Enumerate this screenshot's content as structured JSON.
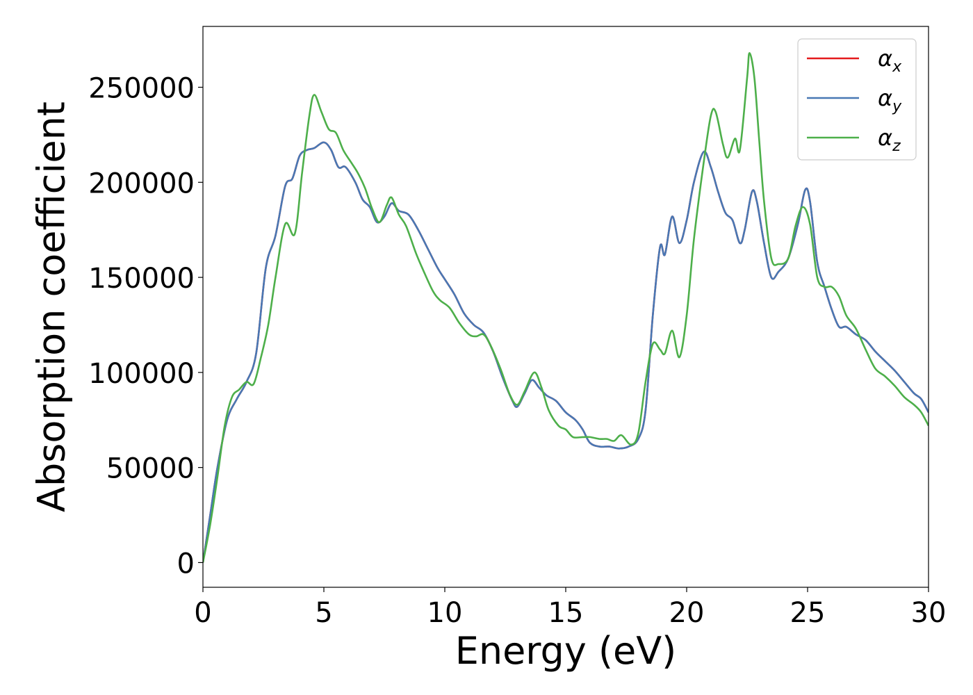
{
  "chart_data": {
    "type": "line",
    "title": "",
    "xlabel": "Energy (eV)",
    "ylabel": "Absorption coefficient",
    "xlim": [
      0,
      30
    ],
    "ylim": [
      -13000,
      282000
    ],
    "xticks": [
      0,
      5,
      10,
      15,
      20,
      25,
      30
    ],
    "yticks": [
      0,
      50000,
      100000,
      150000,
      200000,
      250000
    ],
    "grid": false,
    "legend_position": "top-right",
    "series": [
      {
        "name": "α",
        "subscript": "x",
        "color": "#e41a1c",
        "points": [
          [
            0,
            0
          ],
          [
            0.3,
            25000
          ],
          [
            0.6,
            50000
          ],
          [
            1.0,
            75000
          ],
          [
            1.4,
            86000
          ],
          [
            1.8,
            95000
          ],
          [
            2.2,
            110000
          ],
          [
            2.6,
            155000
          ],
          [
            3.0,
            172000
          ],
          [
            3.4,
            198000
          ],
          [
            3.7,
            202000
          ],
          [
            4.0,
            214000
          ],
          [
            4.3,
            217000
          ],
          [
            4.6,
            218000
          ],
          [
            5.0,
            221000
          ],
          [
            5.3,
            217000
          ],
          [
            5.6,
            208000
          ],
          [
            5.9,
            208000
          ],
          [
            6.3,
            200000
          ],
          [
            6.6,
            191000
          ],
          [
            6.9,
            187000
          ],
          [
            7.2,
            179000
          ],
          [
            7.5,
            182000
          ],
          [
            7.8,
            189000
          ],
          [
            8.1,
            185000
          ],
          [
            8.5,
            183000
          ],
          [
            8.9,
            175000
          ],
          [
            9.3,
            165000
          ],
          [
            9.7,
            155000
          ],
          [
            10.0,
            149000
          ],
          [
            10.4,
            141000
          ],
          [
            10.8,
            131000
          ],
          [
            11.2,
            125000
          ],
          [
            11.6,
            121000
          ],
          [
            12.0,
            111000
          ],
          [
            12.4,
            97000
          ],
          [
            12.8,
            85000
          ],
          [
            13.0,
            82000
          ],
          [
            13.3,
            89000
          ],
          [
            13.6,
            96000
          ],
          [
            13.9,
            92000
          ],
          [
            14.2,
            88000
          ],
          [
            14.6,
            85000
          ],
          [
            15.0,
            79000
          ],
          [
            15.4,
            75000
          ],
          [
            15.7,
            70000
          ],
          [
            16.0,
            63000
          ],
          [
            16.4,
            61000
          ],
          [
            16.8,
            61000
          ],
          [
            17.2,
            60000
          ],
          [
            17.6,
            61000
          ],
          [
            18.0,
            65000
          ],
          [
            18.3,
            80000
          ],
          [
            18.6,
            130000
          ],
          [
            18.9,
            166000
          ],
          [
            19.1,
            162000
          ],
          [
            19.4,
            182000
          ],
          [
            19.7,
            168000
          ],
          [
            20.0,
            180000
          ],
          [
            20.3,
            200000
          ],
          [
            20.7,
            216000
          ],
          [
            21.0,
            208000
          ],
          [
            21.3,
            195000
          ],
          [
            21.6,
            184000
          ],
          [
            21.9,
            180000
          ],
          [
            22.2,
            168000
          ],
          [
            22.4,
            175000
          ],
          [
            22.7,
            195000
          ],
          [
            22.9,
            190000
          ],
          [
            23.2,
            168000
          ],
          [
            23.5,
            150000
          ],
          [
            23.8,
            153000
          ],
          [
            24.2,
            160000
          ],
          [
            24.6,
            178000
          ],
          [
            24.9,
            196000
          ],
          [
            25.1,
            190000
          ],
          [
            25.4,
            158000
          ],
          [
            25.7,
            145000
          ],
          [
            26.0,
            133000
          ],
          [
            26.3,
            124000
          ],
          [
            26.6,
            124000
          ],
          [
            27.0,
            120000
          ],
          [
            27.4,
            117000
          ],
          [
            27.8,
            111000
          ],
          [
            28.2,
            106000
          ],
          [
            28.6,
            101000
          ],
          [
            29.0,
            95000
          ],
          [
            29.4,
            89000
          ],
          [
            29.7,
            86000
          ],
          [
            30.0,
            79000
          ]
        ]
      },
      {
        "name": "α",
        "subscript": "y",
        "color": "#4878b4",
        "points": [
          [
            0,
            0
          ],
          [
            0.3,
            25000
          ],
          [
            0.6,
            50000
          ],
          [
            1.0,
            75000
          ],
          [
            1.4,
            86000
          ],
          [
            1.8,
            95000
          ],
          [
            2.2,
            110000
          ],
          [
            2.6,
            155000
          ],
          [
            3.0,
            172000
          ],
          [
            3.4,
            198000
          ],
          [
            3.7,
            202000
          ],
          [
            4.0,
            214000
          ],
          [
            4.3,
            217000
          ],
          [
            4.6,
            218000
          ],
          [
            5.0,
            221000
          ],
          [
            5.3,
            217000
          ],
          [
            5.6,
            208000
          ],
          [
            5.9,
            208000
          ],
          [
            6.3,
            200000
          ],
          [
            6.6,
            191000
          ],
          [
            6.9,
            187000
          ],
          [
            7.2,
            179000
          ],
          [
            7.5,
            182000
          ],
          [
            7.8,
            189000
          ],
          [
            8.1,
            185000
          ],
          [
            8.5,
            183000
          ],
          [
            8.9,
            175000
          ],
          [
            9.3,
            165000
          ],
          [
            9.7,
            155000
          ],
          [
            10.0,
            149000
          ],
          [
            10.4,
            141000
          ],
          [
            10.8,
            131000
          ],
          [
            11.2,
            125000
          ],
          [
            11.6,
            121000
          ],
          [
            12.0,
            111000
          ],
          [
            12.4,
            97000
          ],
          [
            12.8,
            85000
          ],
          [
            13.0,
            82000
          ],
          [
            13.3,
            89000
          ],
          [
            13.6,
            96000
          ],
          [
            13.9,
            92000
          ],
          [
            14.2,
            88000
          ],
          [
            14.6,
            85000
          ],
          [
            15.0,
            79000
          ],
          [
            15.4,
            75000
          ],
          [
            15.7,
            70000
          ],
          [
            16.0,
            63000
          ],
          [
            16.4,
            61000
          ],
          [
            16.8,
            61000
          ],
          [
            17.2,
            60000
          ],
          [
            17.6,
            61000
          ],
          [
            18.0,
            65000
          ],
          [
            18.3,
            80000
          ],
          [
            18.6,
            130000
          ],
          [
            18.9,
            166000
          ],
          [
            19.1,
            162000
          ],
          [
            19.4,
            182000
          ],
          [
            19.7,
            168000
          ],
          [
            20.0,
            180000
          ],
          [
            20.3,
            200000
          ],
          [
            20.7,
            216000
          ],
          [
            21.0,
            208000
          ],
          [
            21.3,
            195000
          ],
          [
            21.6,
            184000
          ],
          [
            21.9,
            180000
          ],
          [
            22.2,
            168000
          ],
          [
            22.4,
            175000
          ],
          [
            22.7,
            195000
          ],
          [
            22.9,
            190000
          ],
          [
            23.2,
            168000
          ],
          [
            23.5,
            150000
          ],
          [
            23.8,
            153000
          ],
          [
            24.2,
            160000
          ],
          [
            24.6,
            178000
          ],
          [
            24.9,
            196000
          ],
          [
            25.1,
            190000
          ],
          [
            25.4,
            158000
          ],
          [
            25.7,
            145000
          ],
          [
            26.0,
            133000
          ],
          [
            26.3,
            124000
          ],
          [
            26.6,
            124000
          ],
          [
            27.0,
            120000
          ],
          [
            27.4,
            117000
          ],
          [
            27.8,
            111000
          ],
          [
            28.2,
            106000
          ],
          [
            28.6,
            101000
          ],
          [
            29.0,
            95000
          ],
          [
            29.4,
            89000
          ],
          [
            29.7,
            86000
          ],
          [
            30.0,
            79000
          ]
        ]
      },
      {
        "name": "α",
        "subscript": "z",
        "color": "#4daf4a",
        "points": [
          [
            0,
            0
          ],
          [
            0.3,
            20000
          ],
          [
            0.6,
            45000
          ],
          [
            0.9,
            72000
          ],
          [
            1.2,
            87000
          ],
          [
            1.5,
            91000
          ],
          [
            1.8,
            95000
          ],
          [
            2.1,
            94000
          ],
          [
            2.4,
            108000
          ],
          [
            2.7,
            125000
          ],
          [
            3.0,
            150000
          ],
          [
            3.4,
            178000
          ],
          [
            3.8,
            173000
          ],
          [
            4.1,
            205000
          ],
          [
            4.4,
            235000
          ],
          [
            4.6,
            246000
          ],
          [
            4.9,
            237000
          ],
          [
            5.2,
            228000
          ],
          [
            5.5,
            226000
          ],
          [
            5.8,
            217000
          ],
          [
            6.1,
            211000
          ],
          [
            6.4,
            205000
          ],
          [
            6.7,
            197000
          ],
          [
            7.0,
            186000
          ],
          [
            7.3,
            179000
          ],
          [
            7.6,
            188000
          ],
          [
            7.8,
            192000
          ],
          [
            8.1,
            183000
          ],
          [
            8.4,
            177000
          ],
          [
            8.8,
            163000
          ],
          [
            9.1,
            154000
          ],
          [
            9.5,
            143000
          ],
          [
            9.8,
            138000
          ],
          [
            10.2,
            134000
          ],
          [
            10.6,
            126000
          ],
          [
            11.0,
            120000
          ],
          [
            11.3,
            119000
          ],
          [
            11.6,
            120000
          ],
          [
            11.9,
            114000
          ],
          [
            12.3,
            102000
          ],
          [
            12.7,
            88000
          ],
          [
            13.0,
            83000
          ],
          [
            13.3,
            90000
          ],
          [
            13.7,
            100000
          ],
          [
            14.0,
            92000
          ],
          [
            14.3,
            80000
          ],
          [
            14.7,
            72000
          ],
          [
            15.0,
            70000
          ],
          [
            15.3,
            66000
          ],
          [
            15.7,
            66000
          ],
          [
            16.0,
            66000
          ],
          [
            16.4,
            65000
          ],
          [
            16.7,
            65000
          ],
          [
            17.0,
            64000
          ],
          [
            17.3,
            67000
          ],
          [
            17.7,
            62000
          ],
          [
            18.0,
            68000
          ],
          [
            18.3,
            95000
          ],
          [
            18.6,
            115000
          ],
          [
            18.9,
            112000
          ],
          [
            19.1,
            110000
          ],
          [
            19.4,
            122000
          ],
          [
            19.7,
            108000
          ],
          [
            20.0,
            130000
          ],
          [
            20.3,
            170000
          ],
          [
            20.7,
            210000
          ],
          [
            21.0,
            235000
          ],
          [
            21.2,
            237000
          ],
          [
            21.5,
            220000
          ],
          [
            21.7,
            213000
          ],
          [
            22.0,
            223000
          ],
          [
            22.2,
            217000
          ],
          [
            22.5,
            255000
          ],
          [
            22.6,
            268000
          ],
          [
            22.8,
            255000
          ],
          [
            23.0,
            222000
          ],
          [
            23.2,
            190000
          ],
          [
            23.5,
            160000
          ],
          [
            23.8,
            157000
          ],
          [
            24.2,
            160000
          ],
          [
            24.5,
            177000
          ],
          [
            24.8,
            187000
          ],
          [
            25.1,
            178000
          ],
          [
            25.4,
            150000
          ],
          [
            25.7,
            145000
          ],
          [
            26.0,
            145000
          ],
          [
            26.3,
            140000
          ],
          [
            26.6,
            130000
          ],
          [
            27.0,
            123000
          ],
          [
            27.4,
            112000
          ],
          [
            27.8,
            102000
          ],
          [
            28.2,
            98000
          ],
          [
            28.6,
            93000
          ],
          [
            29.0,
            87000
          ],
          [
            29.4,
            83000
          ],
          [
            29.7,
            79000
          ],
          [
            30.0,
            72000
          ]
        ]
      }
    ]
  }
}
